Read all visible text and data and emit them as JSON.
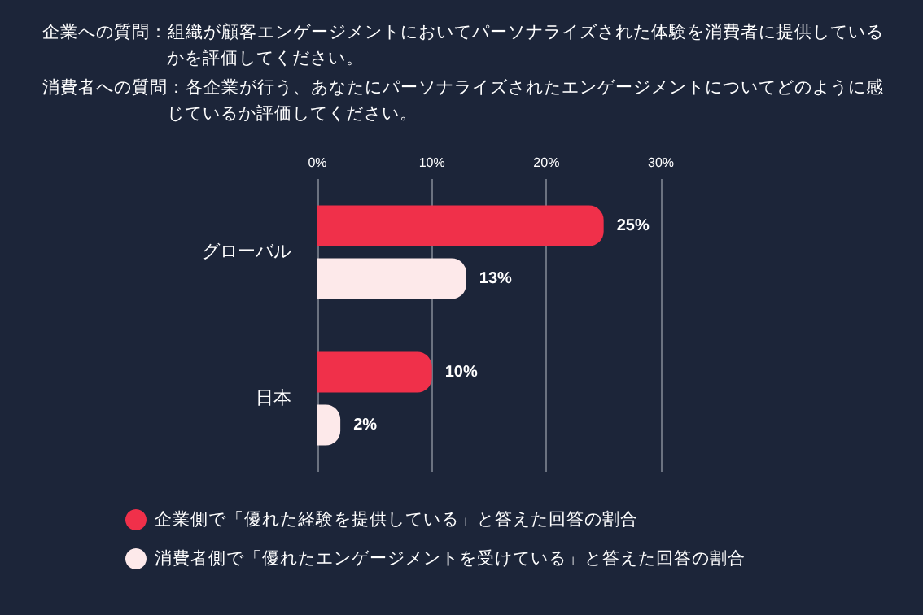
{
  "chart_data": {
    "type": "bar",
    "orientation": "horizontal",
    "title": "企業への質問：組織が顧客エンゲージメントにおいてパーソナライズされた体験を消費者に提供しているかを評価してください。",
    "subtitle": "消費者への質問：各企業が行う、あなたにパーソナライズされたエンゲージメントについてどのように感じているか評価してください。",
    "categories": [
      "グローバル",
      "日本"
    ],
    "series": [
      {
        "name": "企業側で「優れた経験を提供している」と答えた回答の割合",
        "color": "#f0304a",
        "values": [
          25,
          10
        ],
        "value_labels": [
          "25%",
          "10%"
        ]
      },
      {
        "name": "消費者側で「優れたエンゲージメントを受けている」と答えた回答の割合",
        "color": "#fde9ea",
        "values": [
          13,
          2
        ],
        "value_labels": [
          "13%",
          "2%"
        ]
      }
    ],
    "xlim": [
      0,
      30
    ],
    "xticks": [
      {
        "value": 0,
        "label": "0%"
      },
      {
        "value": 10,
        "label": "10%"
      },
      {
        "value": 20,
        "label": "20%"
      },
      {
        "value": 30,
        "label": "30%"
      }
    ],
    "grid": "x",
    "legend": "bottom left"
  }
}
